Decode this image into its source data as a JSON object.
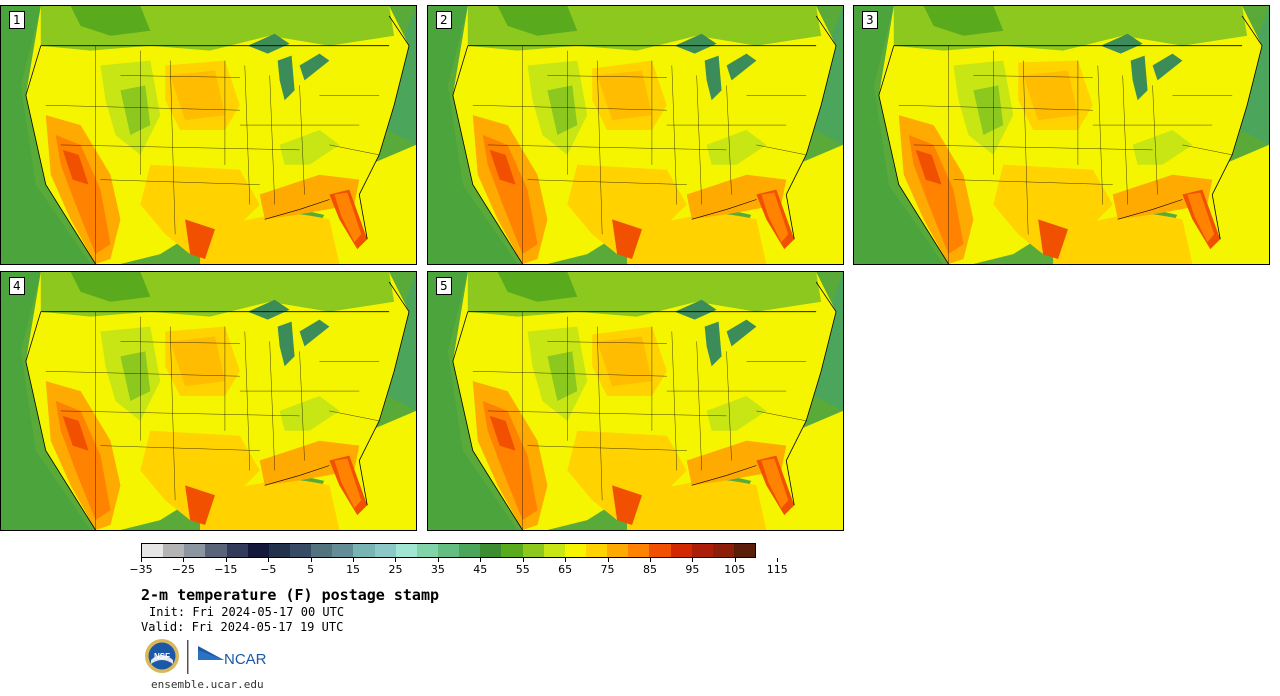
{
  "panels": [
    {
      "label": "1"
    },
    {
      "label": "2"
    },
    {
      "label": "3"
    },
    {
      "label": "4"
    },
    {
      "label": "5"
    }
  ],
  "colorbar": {
    "colors": [
      "#e6e6e6",
      "#b4b4b4",
      "#8c96a0",
      "#5a6478",
      "#323c5a",
      "#14193c",
      "#23324b",
      "#374b64",
      "#50737d",
      "#648c96",
      "#78b4b4",
      "#8cc8c8",
      "#a0e6d2",
      "#82d2aa",
      "#64be82",
      "#4ba55a",
      "#3c8c32",
      "#5aaa1e",
      "#8cc81e",
      "#c8e614",
      "#f5f500",
      "#ffd200",
      "#ffaa00",
      "#ff8200",
      "#f05000",
      "#d22800",
      "#aa1e0a",
      "#8c1e0a",
      "#5a1e0a"
    ],
    "tick_labels": [
      "−35",
      "−25",
      "−15",
      "−5",
      "5",
      "15",
      "25",
      "35",
      "45",
      "55",
      "65",
      "75",
      "85",
      "95",
      "105",
      "115"
    ]
  },
  "title": "2-m temperature (F) postage stamp",
  "init_line": "Init: Fri 2024-05-17 00 UTC",
  "valid_line": "Valid: Fri 2024-05-17 19 UTC",
  "logos": {
    "nsf_text": "NSF",
    "ncar_text": "NCAR"
  },
  "footer_url": "ensemble.ucar.edu"
}
